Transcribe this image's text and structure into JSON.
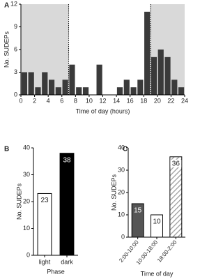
{
  "chart_data": [
    {
      "type": "histogram",
      "panel": "A",
      "ylabel": "No. SUDEPs",
      "xlabel": "Time of day (hours)",
      "bins": [
        0,
        1,
        2,
        3,
        4,
        5,
        6,
        7,
        8,
        9,
        10,
        11,
        12,
        13,
        14,
        15,
        16,
        17,
        18,
        19,
        20,
        21,
        22,
        23,
        24
      ],
      "values": [
        3,
        3,
        1,
        3,
        2,
        1,
        2,
        4,
        1,
        1,
        0,
        4,
        0,
        0,
        1,
        2,
        1,
        2,
        11,
        5,
        6,
        5,
        2,
        1
      ],
      "color": "#3a3a3a",
      "xlim": [
        0,
        24
      ],
      "xticks": [
        0,
        2,
        4,
        6,
        8,
        10,
        12,
        14,
        16,
        18,
        20,
        22,
        24
      ],
      "ylim": [
        0,
        12
      ],
      "yticks": [
        0,
        3,
        6,
        9,
        12
      ],
      "shaded_ranges": [
        [
          0,
          7
        ],
        [
          19,
          24
        ]
      ],
      "shade_color": "#d9d9d9",
      "dotted_lines": [
        7,
        19
      ]
    },
    {
      "type": "bar",
      "panel": "B",
      "ylabel": "No. SUDEPs",
      "xlabel": "Phase",
      "categories": [
        "light",
        "dark"
      ],
      "values": [
        23,
        38
      ],
      "colors": [
        "#ffffff",
        "#000000"
      ],
      "ylim": [
        0,
        40
      ],
      "yticks": [
        0,
        10,
        20,
        30,
        40
      ]
    },
    {
      "type": "bar",
      "panel": "C",
      "ylabel": "No. SUDEPs",
      "xlabel": "Time of day",
      "categories": [
        "2:00-10:00",
        "10:00-18:00",
        "18:00-2:00"
      ],
      "values": [
        15,
        10,
        36
      ],
      "colors": [
        "#555555",
        "#ffffff",
        "#ffffff"
      ],
      "hatch": [
        false,
        false,
        true
      ],
      "rotated_labels": true,
      "ylim": [
        0,
        40
      ],
      "yticks": [
        0,
        10,
        20,
        30,
        40
      ]
    }
  ]
}
